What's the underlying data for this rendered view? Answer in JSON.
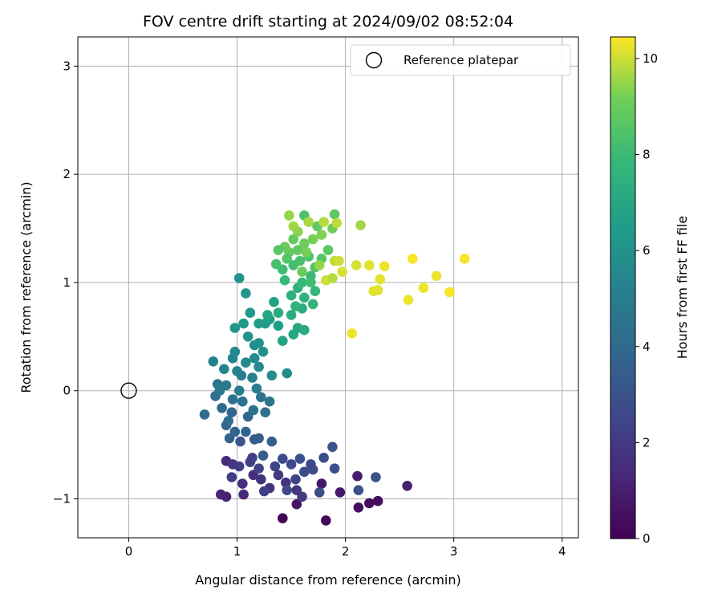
{
  "chart_data": {
    "type": "scatter",
    "title": "FOV centre drift starting at 2024/09/02 08:52:04",
    "xlabel": "Angular distance from reference (arcmin)",
    "ylabel": "Rotation from reference (arcmin)",
    "xlim": [
      -0.47,
      4.15
    ],
    "ylim": [
      -1.36,
      3.27
    ],
    "xticks": [
      0,
      1,
      2,
      3,
      4
    ],
    "yticks": [
      -1,
      0,
      1,
      2,
      3
    ],
    "xtick_labels": [
      "0",
      "1",
      "2",
      "3",
      "4"
    ],
    "ytick_labels": [
      "−1",
      "0",
      "1",
      "2",
      "3"
    ],
    "grid": true,
    "legend": {
      "location": "top-right",
      "entries": [
        "Reference platepar"
      ]
    },
    "reference": {
      "name": "Reference platepar",
      "x": 0.0,
      "y": 0.0,
      "marker": "open-circle"
    },
    "colorbar": {
      "label": "Hours from first FF file",
      "colormap": "viridis",
      "range": [
        0,
        10.45
      ],
      "ticks": [
        0,
        2,
        4,
        6,
        8,
        10
      ],
      "tick_labels": [
        "0",
        "2",
        "4",
        "6",
        "8",
        "10"
      ]
    },
    "points": [
      [
        1.42,
        -1.18,
        0.1
      ],
      [
        1.82,
        -1.2,
        0.2
      ],
      [
        2.22,
        -1.04,
        0.3
      ],
      [
        2.3,
        -1.02,
        0.4
      ],
      [
        2.12,
        -1.08,
        0.5
      ],
      [
        1.55,
        -1.05,
        0.6
      ],
      [
        1.78,
        -0.86,
        0.7
      ],
      [
        1.95,
        -0.94,
        0.8
      ],
      [
        2.11,
        -0.79,
        0.9
      ],
      [
        2.57,
        -0.88,
        1.0
      ],
      [
        0.9,
        -0.98,
        1.1
      ],
      [
        0.85,
        -0.96,
        1.2
      ],
      [
        1.06,
        -0.96,
        1.3
      ],
      [
        0.9,
        -0.65,
        1.4
      ],
      [
        1.05,
        -0.86,
        1.5
      ],
      [
        1.15,
        -0.78,
        1.6
      ],
      [
        1.3,
        -0.9,
        1.7
      ],
      [
        1.45,
        -0.85,
        1.8
      ],
      [
        1.55,
        -0.92,
        1.9
      ],
      [
        1.6,
        -0.98,
        2.0
      ],
      [
        0.95,
        -0.8,
        2.1
      ],
      [
        1.02,
        -0.7,
        2.2
      ],
      [
        1.12,
        -0.66,
        2.3
      ],
      [
        1.2,
        -0.72,
        2.4
      ],
      [
        1.35,
        -0.7,
        2.5
      ],
      [
        1.5,
        -0.68,
        2.6
      ],
      [
        1.62,
        -0.75,
        2.7
      ],
      [
        1.8,
        -0.62,
        2.8
      ],
      [
        1.9,
        -0.72,
        2.9
      ],
      [
        2.12,
        -0.92,
        3.0
      ],
      [
        2.28,
        -0.8,
        3.0
      ],
      [
        1.76,
        -0.94,
        2.7
      ],
      [
        1.25,
        -0.93,
        2.2
      ],
      [
        1.46,
        -0.92,
        2.6
      ],
      [
        1.88,
        -0.52,
        3.1
      ],
      [
        1.58,
        -0.63,
        2.9
      ],
      [
        1.42,
        -0.63,
        2.8
      ],
      [
        1.7,
        -0.73,
        2.7
      ],
      [
        1.03,
        -0.47,
        3.1
      ],
      [
        1.16,
        -0.45,
        3.3
      ],
      [
        1.24,
        -0.6,
        3.4
      ],
      [
        1.32,
        -0.47,
        3.6
      ],
      [
        0.93,
        -0.44,
        3.7
      ],
      [
        0.95,
        -0.2,
        3.8
      ],
      [
        0.9,
        -0.32,
        3.9
      ],
      [
        0.86,
        -0.16,
        4.0
      ],
      [
        0.7,
        -0.22,
        4.1
      ],
      [
        0.8,
        -0.05,
        4.2
      ],
      [
        0.96,
        -0.08,
        4.3
      ],
      [
        1.05,
        -0.1,
        4.4
      ],
      [
        1.22,
        -0.06,
        4.5
      ],
      [
        1.3,
        -0.1,
        4.6
      ],
      [
        1.15,
        -0.18,
        4.4
      ],
      [
        0.92,
        -0.28,
        4.2
      ],
      [
        0.98,
        -0.38,
        3.8
      ],
      [
        1.08,
        -0.38,
        3.8
      ],
      [
        0.82,
        0.06,
        4.6
      ],
      [
        0.9,
        0.05,
        4.8
      ],
      [
        1.02,
        0.0,
        4.9
      ],
      [
        1.18,
        0.02,
        5.0
      ],
      [
        1.14,
        0.12,
        5.1
      ],
      [
        1.0,
        0.18,
        5.2
      ],
      [
        0.88,
        0.2,
        5.3
      ],
      [
        0.96,
        0.3,
        5.4
      ],
      [
        1.08,
        0.26,
        5.5
      ],
      [
        1.2,
        0.22,
        5.6
      ],
      [
        1.32,
        0.14,
        5.7
      ],
      [
        1.46,
        0.16,
        5.8
      ],
      [
        0.78,
        0.27,
        5.2
      ],
      [
        0.98,
        0.36,
        5.5
      ],
      [
        1.16,
        0.42,
        5.8
      ],
      [
        1.2,
        0.44,
        6.0
      ],
      [
        1.1,
        0.5,
        6.1
      ],
      [
        0.98,
        0.58,
        6.2
      ],
      [
        1.12,
        0.72,
        6.3
      ],
      [
        1.26,
        0.62,
        6.4
      ],
      [
        1.08,
        0.9,
        6.2
      ],
      [
        1.02,
        1.04,
        6.0
      ],
      [
        1.3,
        0.66,
        6.5
      ],
      [
        1.38,
        0.6,
        6.6
      ],
      [
        1.34,
        0.82,
        6.7
      ],
      [
        1.42,
        0.46,
        6.8
      ],
      [
        1.52,
        0.52,
        6.9
      ],
      [
        1.56,
        0.58,
        7.0
      ],
      [
        1.62,
        0.56,
        7.1
      ],
      [
        1.38,
        0.72,
        7.2
      ],
      [
        1.5,
        0.7,
        7.3
      ],
      [
        1.6,
        0.76,
        7.2
      ],
      [
        1.5,
        0.88,
        7.4
      ],
      [
        1.56,
        0.95,
        7.5
      ],
      [
        1.62,
        0.86,
        7.6
      ],
      [
        1.7,
        0.8,
        7.7
      ],
      [
        1.72,
        0.92,
        7.8
      ],
      [
        1.6,
        1.0,
        7.9
      ],
      [
        1.68,
        1.06,
        8.0
      ],
      [
        1.44,
        1.02,
        7.9
      ],
      [
        1.42,
        1.12,
        8.1
      ],
      [
        1.52,
        1.16,
        8.2
      ],
      [
        1.58,
        1.2,
        8.3
      ],
      [
        1.66,
        1.24,
        8.4
      ],
      [
        1.72,
        1.14,
        8.5
      ],
      [
        1.78,
        1.22,
        8.6
      ],
      [
        1.84,
        1.3,
        8.7
      ],
      [
        1.56,
        1.3,
        8.8
      ],
      [
        1.48,
        1.28,
        8.9
      ],
      [
        1.44,
        1.33,
        9.0
      ],
      [
        1.52,
        1.4,
        8.9
      ],
      [
        1.62,
        1.36,
        9.1
      ],
      [
        1.7,
        1.4,
        9.2
      ],
      [
        1.78,
        1.44,
        9.3
      ],
      [
        1.88,
        1.5,
        9.1
      ],
      [
        1.74,
        1.52,
        8.8
      ],
      [
        1.62,
        1.62,
        8.4
      ],
      [
        1.9,
        1.63,
        8.8
      ],
      [
        1.56,
        1.47,
        9.4
      ],
      [
        1.48,
        1.62,
        9.5
      ],
      [
        1.52,
        1.52,
        9.6
      ],
      [
        1.66,
        1.56,
        9.7
      ],
      [
        1.8,
        1.56,
        9.8
      ],
      [
        1.92,
        1.55,
        9.9
      ],
      [
        2.14,
        1.53,
        9.6
      ],
      [
        1.9,
        1.2,
        9.9
      ],
      [
        1.94,
        1.2,
        10.0
      ],
      [
        2.1,
        1.16,
        10.1
      ],
      [
        2.22,
        1.16,
        10.2
      ],
      [
        2.36,
        1.15,
        10.3
      ],
      [
        2.32,
        1.03,
        10.2
      ],
      [
        2.62,
        1.22,
        10.4
      ],
      [
        2.84,
        1.06,
        10.3
      ],
      [
        3.1,
        1.22,
        10.4
      ],
      [
        2.72,
        0.95,
        10.3
      ],
      [
        2.96,
        0.91,
        10.4
      ],
      [
        2.58,
        0.84,
        10.3
      ],
      [
        2.26,
        0.92,
        10.2
      ],
      [
        2.06,
        0.53,
        10.3
      ],
      [
        1.82,
        1.02,
        10.0
      ],
      [
        1.97,
        1.1,
        10.1
      ],
      [
        2.3,
        0.93,
        10.2
      ],
      [
        1.88,
        1.04,
        9.8
      ],
      [
        1.76,
        1.16,
        9.5
      ],
      [
        1.6,
        1.1,
        9.0
      ],
      [
        1.64,
        1.28,
        9.2
      ],
      [
        1.46,
        1.22,
        8.6
      ],
      [
        1.36,
        1.17,
        8.3
      ],
      [
        1.38,
        1.3,
        8.7
      ],
      [
        1.68,
        1.0,
        8.1
      ],
      [
        1.54,
        0.78,
        7.6
      ],
      [
        1.28,
        0.7,
        7.0
      ],
      [
        1.2,
        0.62,
        6.6
      ],
      [
        1.06,
        0.62,
        6.4
      ],
      [
        1.24,
        0.36,
        5.9
      ],
      [
        1.16,
        0.3,
        5.6
      ],
      [
        1.04,
        0.14,
        5.0
      ],
      [
        0.84,
        0.0,
        4.7
      ],
      [
        1.26,
        -0.2,
        4.3
      ],
      [
        1.1,
        -0.24,
        4.0
      ],
      [
        1.2,
        -0.44,
        3.5
      ],
      [
        1.14,
        -0.62,
        2.3
      ],
      [
        0.96,
        -0.68,
        1.9
      ],
      [
        1.22,
        -0.82,
        1.7
      ],
      [
        1.38,
        -0.78,
        2.0
      ],
      [
        1.54,
        -0.82,
        2.4
      ],
      [
        1.68,
        -0.68,
        2.6
      ]
    ]
  }
}
